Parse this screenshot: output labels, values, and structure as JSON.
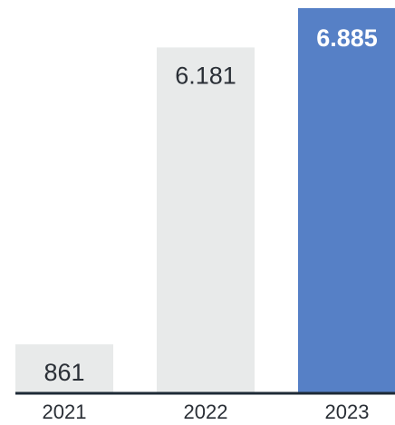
{
  "chart_data": {
    "type": "bar",
    "categories": [
      "2021",
      "2022",
      "2023"
    ],
    "values": [
      861,
      6181,
      6885
    ],
    "value_labels": [
      "861",
      "6.181",
      "6.885"
    ],
    "highlight_index": 2,
    "ylim": [
      0,
      6885
    ],
    "grid": false,
    "colors": {
      "bar_default": "#e8eaea",
      "bar_highlight": "#5680c6",
      "label_default": "#2a2f36",
      "label_highlight": "#ffffff",
      "baseline": "#1e2a36"
    }
  }
}
